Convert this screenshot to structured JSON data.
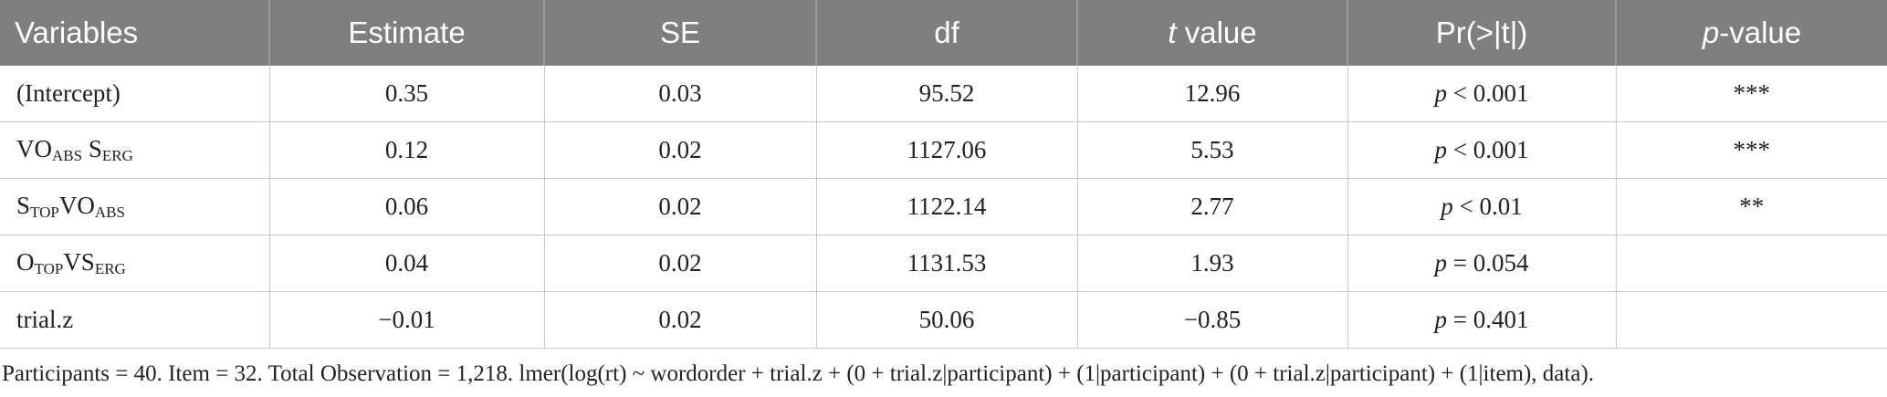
{
  "table": {
    "header": [
      [
        {
          "text": "Variables"
        }
      ],
      [
        {
          "text": "Estimate"
        }
      ],
      [
        {
          "text": "SE"
        }
      ],
      [
        {
          "text": "df"
        }
      ],
      [
        {
          "text": "t",
          "italic": true
        },
        {
          "text": " value"
        }
      ],
      [
        {
          "text": "Pr(>|t|)"
        }
      ],
      [
        {
          "text": "p",
          "italic": true
        },
        {
          "text": "-value"
        }
      ]
    ],
    "rows": [
      [
        [
          {
            "text": "(Intercept)"
          }
        ],
        [
          {
            "text": "0.35"
          }
        ],
        [
          {
            "text": "0.03"
          }
        ],
        [
          {
            "text": "95.52"
          }
        ],
        [
          {
            "text": "12.96"
          }
        ],
        [
          {
            "text": "p",
            "italic": true
          },
          {
            "text": " < 0.001"
          }
        ],
        [
          {
            "text": "***"
          }
        ]
      ],
      [
        [
          {
            "text": "VO"
          },
          {
            "text": "ABS",
            "sub": true
          },
          {
            "text": " S"
          },
          {
            "text": "ERG",
            "sub": true
          }
        ],
        [
          {
            "text": "0.12"
          }
        ],
        [
          {
            "text": "0.02"
          }
        ],
        [
          {
            "text": "1127.06"
          }
        ],
        [
          {
            "text": "5.53"
          }
        ],
        [
          {
            "text": "p",
            "italic": true
          },
          {
            "text": " < 0.001"
          }
        ],
        [
          {
            "text": "***"
          }
        ]
      ],
      [
        [
          {
            "text": "S"
          },
          {
            "text": "TOP",
            "sub": true
          },
          {
            "text": "VO"
          },
          {
            "text": "ABS",
            "sub": true
          }
        ],
        [
          {
            "text": "0.06"
          }
        ],
        [
          {
            "text": "0.02"
          }
        ],
        [
          {
            "text": "1122.14"
          }
        ],
        [
          {
            "text": "2.77"
          }
        ],
        [
          {
            "text": "p",
            "italic": true
          },
          {
            "text": " < 0.01"
          }
        ],
        [
          {
            "text": "**"
          }
        ]
      ],
      [
        [
          {
            "text": "O"
          },
          {
            "text": "TOP",
            "sub": true
          },
          {
            "text": "VS"
          },
          {
            "text": "ERG",
            "sub": true
          }
        ],
        [
          {
            "text": "0.04"
          }
        ],
        [
          {
            "text": "0.02"
          }
        ],
        [
          {
            "text": "1131.53"
          }
        ],
        [
          {
            "text": "1.93"
          }
        ],
        [
          {
            "text": "p",
            "italic": true
          },
          {
            "text": " = 0.054"
          }
        ],
        null
      ],
      [
        [
          {
            "text": "trial.z"
          }
        ],
        [
          {
            "text": "−0.01"
          }
        ],
        [
          {
            "text": "0.02"
          }
        ],
        [
          {
            "text": "50.06"
          }
        ],
        [
          {
            "text": "−0.85"
          }
        ],
        [
          {
            "text": "p",
            "italic": true
          },
          {
            "text": " = 0.401"
          }
        ],
        null
      ]
    ],
    "footnote": "Participants = 40. Item = 32. Total Observation = 1,218. lmer(log(rt) ~ wordorder + trial.z + (0 + trial.z|participant) + (1|participant) + (0 + trial.z|participant) + (1|item), data)."
  }
}
